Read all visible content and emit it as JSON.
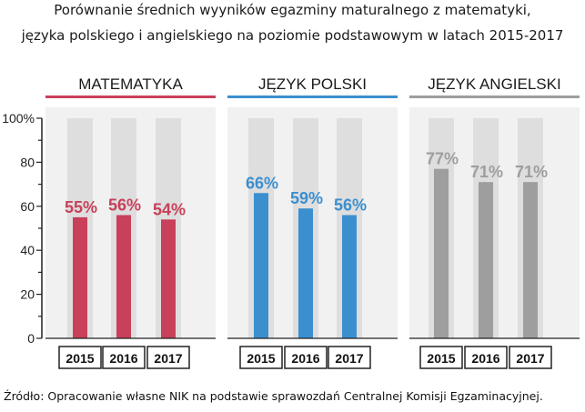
{
  "title_line1": "Porównanie  średnich wyyników egazminy maturalnego  z matematyki,",
  "title_line2": "języka polskiego  i angielskiego  na poziomie  podstawowym  w latach 2015-2017",
  "source": "Źródło: Opracowanie własne NIK na podstawie sprawozdań Centralnej Komisji Egzaminacyjnej.",
  "chart_data": {
    "type": "bar",
    "ylim": [
      0,
      100
    ],
    "yticks": [
      "0",
      "20",
      "40",
      "60",
      "80",
      "100%"
    ],
    "ytick_values": [
      0,
      20,
      40,
      60,
      80,
      100
    ],
    "categories": [
      "2015",
      "2016",
      "2017"
    ],
    "grid": false,
    "series": [
      {
        "name": "MATEMATYKA",
        "color": "#c8405a",
        "values": [
          55,
          56,
          54
        ],
        "labels": [
          "55%",
          "56%",
          "54%"
        ]
      },
      {
        "name": "JĘZYK POLSKI",
        "color": "#3b8fcf",
        "values": [
          66,
          59,
          56
        ],
        "labels": [
          "66%",
          "59%",
          "56%"
        ]
      },
      {
        "name": "JĘZYK ANGIELSKI",
        "color": "#9e9e9e",
        "values": [
          77,
          71,
          71
        ],
        "labels": [
          "77%",
          "71%",
          "71%"
        ]
      }
    ]
  }
}
